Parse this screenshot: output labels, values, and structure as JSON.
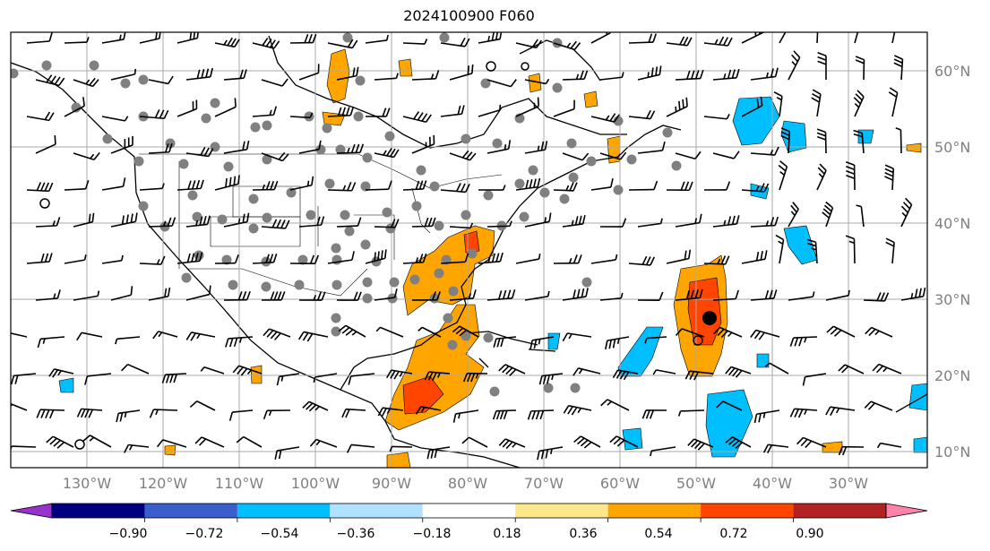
{
  "title": "2024100900 F060",
  "colors": {
    "land_outline": "#000000",
    "grid": "#a9a9a9",
    "tick_text": "#808080",
    "station_dot": "#808080"
  },
  "map": {
    "lon_labels": [
      "130°W",
      "120°W",
      "110°W",
      "100°W",
      "90°W",
      "80°W",
      "70°W",
      "60°W",
      "50°W",
      "40°W",
      "30°W"
    ],
    "lat_labels": [
      "60°N",
      "50°N",
      "40°N",
      "30°N",
      "20°N",
      "10°N"
    ],
    "lon_values": [
      -130,
      -120,
      -110,
      -100,
      -90,
      -80,
      -70,
      -60,
      -50,
      -40,
      -30
    ],
    "lat_values": [
      60,
      50,
      40,
      30,
      20,
      10
    ],
    "extent": {
      "lon_min": -138.5,
      "lon_max": -21,
      "lat_min": 8,
      "lat_max": 65
    }
  },
  "colorbar": {
    "labels": [
      "−0.90",
      "−0.72",
      "−0.54",
      "−0.36",
      "−0.18",
      "0.18",
      "0.36",
      "0.54",
      "0.72",
      "0.90"
    ],
    "bins": [
      {
        "color": "#9932cc"
      },
      {
        "color": "#000080"
      },
      {
        "color": "#3a5fcd"
      },
      {
        "color": "#00bfff"
      },
      {
        "color": "#b0e2ff"
      },
      {
        "color": "#ffffff"
      },
      {
        "color": "#fce78a"
      },
      {
        "color": "#ffa500"
      },
      {
        "color": "#ff4500"
      },
      {
        "color": "#b22222"
      },
      {
        "color": "#ff82ab"
      }
    ],
    "extend": "both"
  }
}
